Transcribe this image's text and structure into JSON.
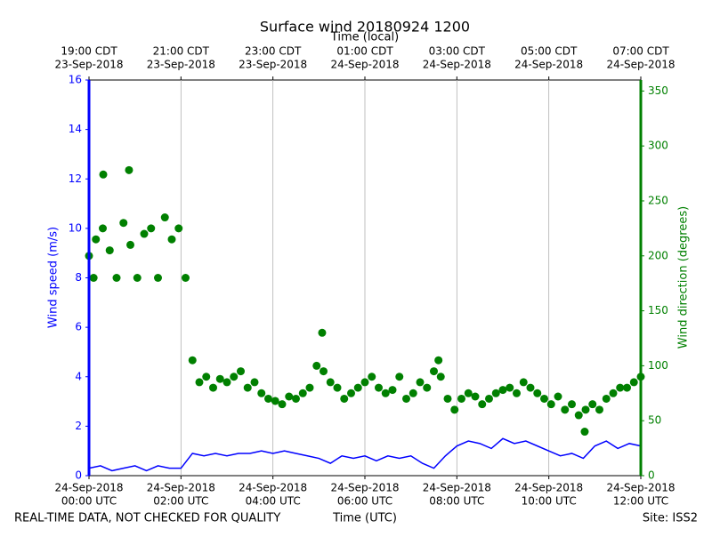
{
  "chart_data": {
    "type": "line",
    "title": "Surface wind 20180924 1200",
    "x2label": "Time (local)",
    "xlabel": "Time (UTC)",
    "ylabel": "Wind speed (m/s)",
    "y2label": "Wind direction (degrees)",
    "footer_left": "REAL-TIME DATA, NOT CHECKED FOR QUALITY",
    "footer_right": "Site: ISS2",
    "xlim": [
      0,
      12
    ],
    "xticks": [
      {
        "value": 0,
        "label": [
          "24-Sep-2018",
          "00:00 UTC"
        ]
      },
      {
        "value": 2,
        "label": [
          "24-Sep-2018",
          "02:00 UTC"
        ]
      },
      {
        "value": 4,
        "label": [
          "24-Sep-2018",
          "04:00 UTC"
        ]
      },
      {
        "value": 6,
        "label": [
          "24-Sep-2018",
          "06:00 UTC"
        ]
      },
      {
        "value": 8,
        "label": [
          "24-Sep-2018",
          "08:00 UTC"
        ]
      },
      {
        "value": 10,
        "label": [
          "24-Sep-2018",
          "10:00 UTC"
        ]
      },
      {
        "value": 12,
        "label": [
          "24-Sep-2018",
          "12:00 UTC"
        ]
      }
    ],
    "x2ticks": [
      {
        "value": 0,
        "label": [
          "19:00 CDT",
          "23-Sep-2018"
        ]
      },
      {
        "value": 2,
        "label": [
          "21:00 CDT",
          "23-Sep-2018"
        ]
      },
      {
        "value": 4,
        "label": [
          "23:00 CDT",
          "23-Sep-2018"
        ]
      },
      {
        "value": 6,
        "label": [
          "01:00 CDT",
          "24-Sep-2018"
        ]
      },
      {
        "value": 8,
        "label": [
          "03:00 CDT",
          "24-Sep-2018"
        ]
      },
      {
        "value": 10,
        "label": [
          "05:00 CDT",
          "24-Sep-2018"
        ]
      },
      {
        "value": 12,
        "label": [
          "07:00 CDT",
          "24-Sep-2018"
        ]
      }
    ],
    "ylim": [
      0,
      16
    ],
    "yticks": [
      0,
      2,
      4,
      6,
      8,
      10,
      12,
      14,
      16
    ],
    "y2lim": [
      0,
      360
    ],
    "y2ticks": [
      0,
      50,
      100,
      150,
      200,
      250,
      300,
      350
    ],
    "grid": true,
    "series": [
      {
        "type": "line",
        "color": "#0000ff",
        "axis": "y",
        "x": [
          0,
          0.25,
          0.5,
          0.75,
          1,
          1.25,
          1.5,
          1.75,
          2,
          2.25,
          2.5,
          2.75,
          3,
          3.25,
          3.5,
          3.75,
          4,
          4.25,
          4.5,
          4.75,
          5,
          5.25,
          5.5,
          5.75,
          6,
          6.25,
          6.5,
          6.75,
          7,
          7.25,
          7.5,
          7.75,
          8,
          8.25,
          8.5,
          8.75,
          9,
          9.25,
          9.5,
          9.75,
          10,
          10.25,
          10.5,
          10.75,
          11,
          11.25,
          11.5,
          11.75,
          12
        ],
        "values": [
          0.3,
          0.4,
          0.2,
          0.3,
          0.4,
          0.2,
          0.4,
          0.3,
          0.3,
          0.9,
          0.8,
          0.9,
          0.8,
          0.9,
          0.9,
          1.0,
          0.9,
          1.0,
          0.9,
          0.8,
          0.7,
          0.5,
          0.8,
          0.7,
          0.8,
          0.6,
          0.8,
          0.7,
          0.8,
          0.5,
          0.3,
          0.8,
          1.2,
          1.4,
          1.3,
          1.1,
          1.5,
          1.3,
          1.4,
          1.2,
          1.0,
          0.8,
          0.9,
          0.7,
          1.2,
          1.4,
          1.1,
          1.3,
          1.2
        ]
      },
      {
        "type": "scatter",
        "color": "#008000",
        "axis": "y2",
        "x": [
          0,
          0.15,
          0.3,
          0.45,
          0.6,
          0.75,
          0.9,
          1.05,
          1.2,
          1.35,
          1.5,
          1.65,
          1.8,
          1.95,
          2.1,
          2.25,
          2.4,
          2.55,
          2.7,
          2.85,
          3.0,
          3.15,
          3.3,
          3.45,
          3.6,
          3.75,
          3.9,
          4.05,
          4.2,
          4.35,
          4.5,
          4.65,
          4.8,
          4.95,
          5.1,
          5.25,
          5.4,
          5.55,
          5.7,
          5.85,
          6.0,
          6.15,
          6.3,
          6.45,
          6.6,
          6.75,
          6.9,
          7.05,
          7.2,
          7.35,
          7.5,
          7.65,
          7.8,
          7.95,
          8.1,
          8.25,
          8.4,
          8.55,
          8.7,
          8.85,
          9.0,
          9.15,
          9.3,
          9.45,
          9.6,
          9.75,
          9.9,
          10.05,
          10.2,
          10.35,
          10.5,
          10.65,
          10.8,
          10.95,
          11.1,
          11.25,
          11.4,
          11.55,
          11.7,
          11.85,
          12.0,
          0.31,
          0.87,
          5.07,
          10.78,
          7.6,
          0.1
        ],
        "values": [
          200,
          215,
          225,
          205,
          180,
          230,
          210,
          180,
          220,
          225,
          180,
          235,
          215,
          225,
          180,
          105,
          85,
          90,
          80,
          88,
          85,
          90,
          95,
          80,
          85,
          75,
          70,
          68,
          65,
          72,
          70,
          75,
          80,
          100,
          95,
          85,
          80,
          70,
          75,
          80,
          85,
          90,
          80,
          75,
          78,
          90,
          70,
          75,
          85,
          80,
          95,
          90,
          70,
          60,
          70,
          75,
          72,
          65,
          70,
          75,
          78,
          80,
          75,
          85,
          80,
          75,
          70,
          65,
          72,
          60,
          65,
          55,
          60,
          65,
          60,
          70,
          75,
          80,
          80,
          85,
          90,
          274,
          278,
          130,
          40,
          105,
          180
        ]
      }
    ]
  }
}
